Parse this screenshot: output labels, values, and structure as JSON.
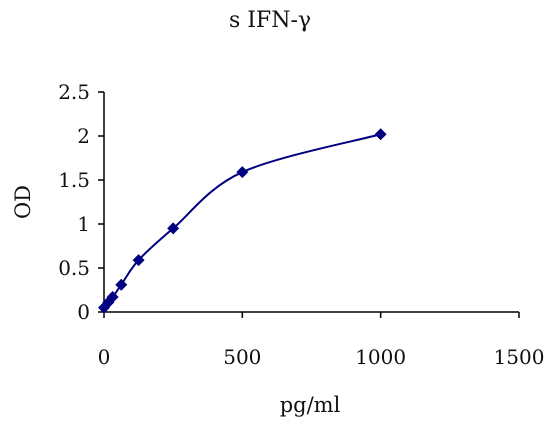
{
  "chart_data": {
    "type": "line",
    "title": "s IFN-γ",
    "xlabel": "pg/ml",
    "ylabel": "OD",
    "xlim": [
      0,
      1500
    ],
    "ylim": [
      0,
      2.5
    ],
    "xticks": [
      0,
      500,
      1000,
      1500
    ],
    "yticks": [
      0,
      0.5,
      1,
      1.5,
      2,
      2.5
    ],
    "xtick_labels": [
      "0",
      "500",
      "1000",
      "1500"
    ],
    "ytick_labels": [
      "0",
      "0.5",
      "1",
      "1.5",
      "2",
      "2.5"
    ],
    "grid": false,
    "marker": "diamond",
    "smooth": true,
    "series": [
      {
        "color": "#000080",
        "x": [
          0,
          15.6,
          31.25,
          62.5,
          125,
          250,
          500,
          1000
        ],
        "y": [
          0.05,
          0.11,
          0.17,
          0.31,
          0.59,
          0.95,
          1.59,
          2.02
        ]
      }
    ]
  }
}
